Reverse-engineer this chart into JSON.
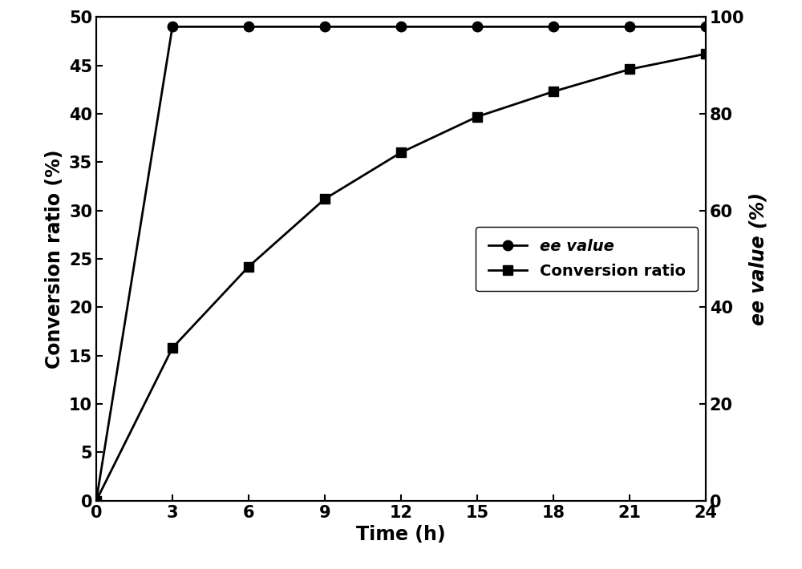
{
  "time": [
    0,
    3,
    6,
    9,
    12,
    15,
    18,
    21,
    24
  ],
  "conversion_ratio": [
    0,
    15.8,
    24.2,
    31.2,
    36.0,
    39.7,
    42.3,
    44.6,
    46.2
  ],
  "ee_value": [
    0,
    98.0,
    98.0,
    98.0,
    98.0,
    98.0,
    98.0,
    98.0,
    98.0
  ],
  "xlabel": "Time (h)",
  "ylabel_left": "Conversion ratio (%)",
  "ylabel_right": "ee value (%)",
  "legend_ee": "ee value",
  "legend_conv": "Conversion ratio",
  "xlim": [
    0,
    24
  ],
  "ylim_left": [
    0,
    50
  ],
  "ylim_right": [
    0,
    100
  ],
  "xticks": [
    0,
    3,
    6,
    9,
    12,
    15,
    18,
    21,
    24
  ],
  "yticks_left": [
    0,
    5,
    10,
    15,
    20,
    25,
    30,
    35,
    40,
    45,
    50
  ],
  "yticks_right": [
    0,
    20,
    40,
    60,
    80,
    100
  ],
  "line_color": "#000000",
  "marker_circle": "o",
  "marker_square": "s",
  "markersize": 9,
  "linewidth": 2.0,
  "tick_fontsize": 15,
  "label_fontsize": 17,
  "legend_fontsize": 14,
  "background_color": "#ffffff"
}
